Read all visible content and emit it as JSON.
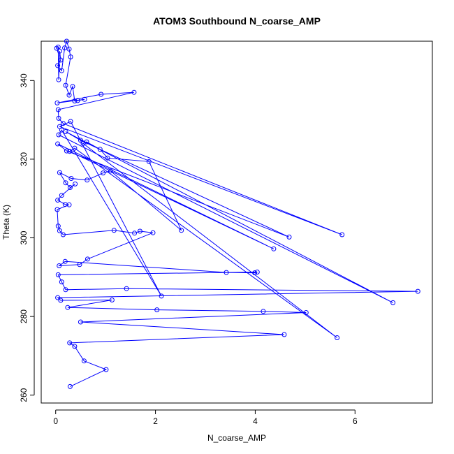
{
  "chart_data": {
    "type": "line",
    "title": "ATOM3 Southbound N_coarse_AMP",
    "xlabel": "N_coarse_AMP",
    "ylabel": "Theta (K)",
    "xlim": [
      -0.29,
      7.55
    ],
    "ylim": [
      258.0,
      350.0
    ],
    "x_ticks": [
      0,
      2,
      4,
      6
    ],
    "y_ticks": [
      260,
      280,
      300,
      320,
      340
    ],
    "grid": false,
    "color": "#0000ff",
    "markers": "open-circle",
    "series": [
      {
        "points": [
          [
            0.02,
            348.2
          ],
          [
            0.05,
            348.5
          ],
          [
            0.08,
            347.5
          ],
          [
            0.1,
            345.2
          ],
          [
            0.04,
            343.8
          ],
          [
            0.12,
            342.5
          ],
          [
            0.06,
            340.2
          ],
          [
            0.18,
            348.3
          ],
          [
            0.27,
            348.0
          ],
          [
            0.22,
            350.0
          ],
          [
            0.3,
            346.0
          ],
          [
            0.2,
            338.8
          ],
          [
            0.34,
            338.5
          ],
          [
            0.27,
            336.3
          ],
          [
            0.38,
            334.8
          ],
          [
            0.58,
            335.2
          ],
          [
            0.44,
            334.9
          ],
          [
            0.91,
            336.5
          ],
          [
            1.57,
            337.0
          ],
          [
            0.03,
            334.3
          ],
          [
            0.05,
            332.6
          ],
          [
            0.06,
            330.4
          ],
          [
            0.15,
            329.1
          ],
          [
            0.08,
            328.3
          ],
          [
            0.3,
            329.6
          ],
          [
            0.12,
            327.4
          ],
          [
            0.06,
            326.2
          ],
          [
            0.2,
            327.0
          ],
          [
            0.5,
            324.8
          ],
          [
            0.22,
            322.1
          ],
          [
            0.04,
            323.9
          ],
          [
            0.28,
            322.0
          ],
          [
            0.38,
            322.8
          ],
          [
            0.55,
            324.0
          ],
          [
            0.62,
            324.4
          ],
          [
            0.89,
            322.5
          ],
          [
            1.04,
            320.3
          ],
          [
            1.87,
            319.4
          ],
          [
            1.1,
            317.0
          ],
          [
            0.95,
            316.5
          ],
          [
            0.63,
            314.7
          ],
          [
            0.31,
            315.1
          ],
          [
            0.08,
            316.6
          ],
          [
            0.2,
            314.0
          ],
          [
            0.29,
            312.8
          ],
          [
            0.39,
            313.7
          ],
          [
            0.12,
            310.8
          ],
          [
            0.04,
            309.6
          ],
          [
            0.19,
            308.5
          ],
          [
            0.27,
            308.4
          ],
          [
            0.03,
            307.2
          ],
          [
            0.05,
            303.0
          ],
          [
            0.08,
            301.8
          ],
          [
            0.15,
            300.8
          ],
          [
            1.17,
            301.9
          ],
          [
            1.58,
            301.2
          ],
          [
            1.69,
            301.7
          ],
          [
            1.95,
            301.3
          ],
          [
            2.52,
            301.9
          ],
          [
            4.68,
            300.2
          ],
          [
            5.74,
            300.8
          ],
          [
            4.37,
            297.2
          ],
          [
            0.64,
            294.6
          ],
          [
            0.48,
            293.2
          ],
          [
            0.07,
            292.9
          ],
          [
            0.19,
            294.0
          ],
          [
            3.42,
            291.2
          ],
          [
            3.99,
            291.1
          ],
          [
            4.04,
            291.3
          ],
          [
            0.05,
            290.6
          ],
          [
            0.12,
            288.8
          ],
          [
            0.2,
            286.8
          ],
          [
            1.42,
            287.1
          ],
          [
            7.26,
            286.4
          ],
          [
            2.12,
            285.2
          ],
          [
            6.76,
            283.5
          ],
          [
            0.04,
            284.8
          ],
          [
            0.1,
            284.1
          ],
          [
            1.13,
            284.2
          ],
          [
            0.24,
            282.3
          ],
          [
            2.03,
            281.7
          ],
          [
            4.16,
            281.3
          ],
          [
            5.02,
            281.0
          ],
          [
            0.5,
            278.6
          ],
          [
            4.58,
            275.4
          ],
          [
            5.64,
            274.6
          ],
          [
            0.28,
            273.3
          ],
          [
            0.38,
            272.4
          ],
          [
            0.57,
            268.7
          ],
          [
            1.01,
            266.5
          ],
          [
            0.29,
            262.2
          ]
        ],
        "draw_order": [
          0,
          1,
          6,
          2,
          3,
          4,
          5,
          7,
          9,
          8,
          10,
          11,
          13,
          12,
          14,
          16,
          15,
          19,
          17,
          18,
          20,
          21,
          22,
          60,
          23,
          24,
          74,
          25,
          26,
          75,
          27,
          28,
          59,
          29,
          30,
          61,
          31,
          32,
          85,
          33,
          34,
          35,
          36,
          37,
          58,
          38,
          39,
          40,
          41,
          42,
          43,
          44,
          45,
          46,
          47,
          48,
          49,
          50,
          51,
          52,
          53,
          54,
          55,
          56,
          57,
          62,
          63,
          64,
          65,
          66,
          67,
          68,
          69,
          70,
          71,
          72,
          73,
          76,
          77,
          78,
          79,
          80,
          81,
          82,
          83,
          84,
          86,
          87,
          88,
          89,
          90
        ]
      }
    ]
  }
}
